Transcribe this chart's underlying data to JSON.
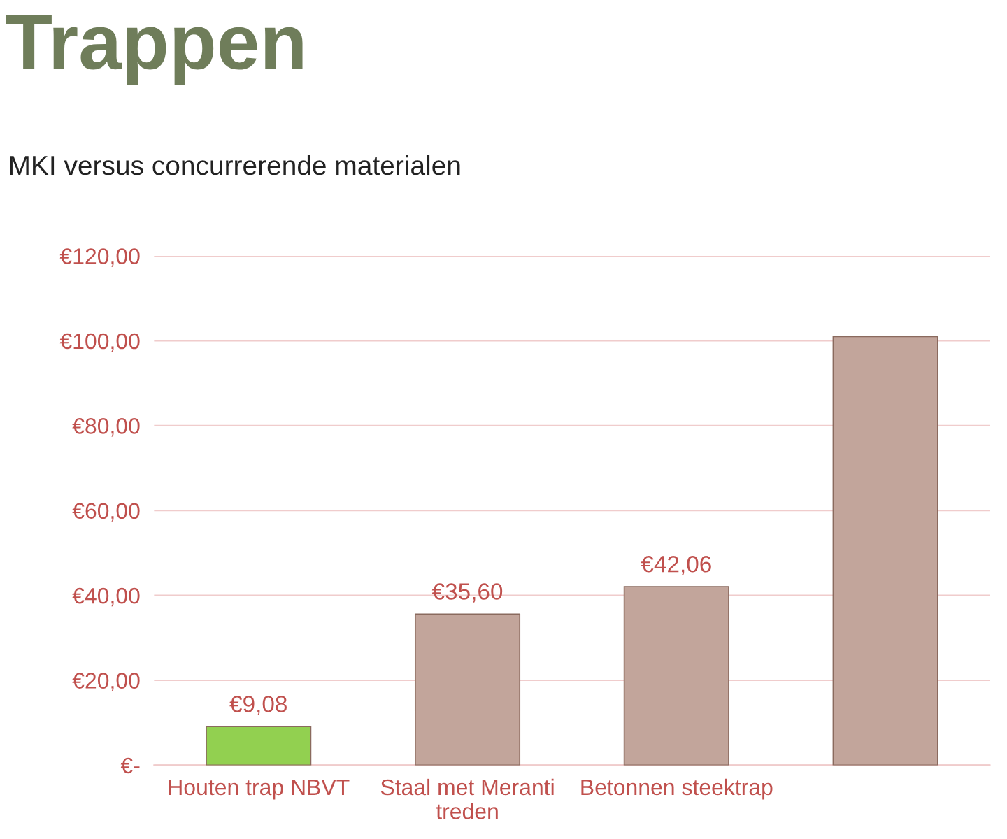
{
  "chart_data": {
    "type": "bar",
    "title": "Trappen",
    "subtitle": "MKI versus concurrerende materialen",
    "categories": [
      "Houten trap NBVT",
      "Staal met Meranti\ntreden",
      "Betonnen steektrap",
      null
    ],
    "values": [
      9.08,
      35.6,
      42.06,
      101
    ],
    "colors": [
      "#92d050",
      "#c2a59b",
      "#c2a59b",
      "#c2a59b"
    ],
    "value_labels": [
      "€9,08",
      "€35,60",
      "€42,06",
      null
    ],
    "ylim": [
      0,
      120
    ],
    "yticks": [
      {
        "value": 0,
        "label": "€-"
      },
      {
        "value": 20,
        "label": "€20,00"
      },
      {
        "value": 40,
        "label": "€40,00"
      },
      {
        "value": 60,
        "label": "€60,00"
      },
      {
        "value": 80,
        "label": "€80,00"
      },
      {
        "value": 100,
        "label": "€100,00"
      },
      {
        "value": 120,
        "label": "€120,00"
      }
    ],
    "grid": "y",
    "legend": false
  }
}
